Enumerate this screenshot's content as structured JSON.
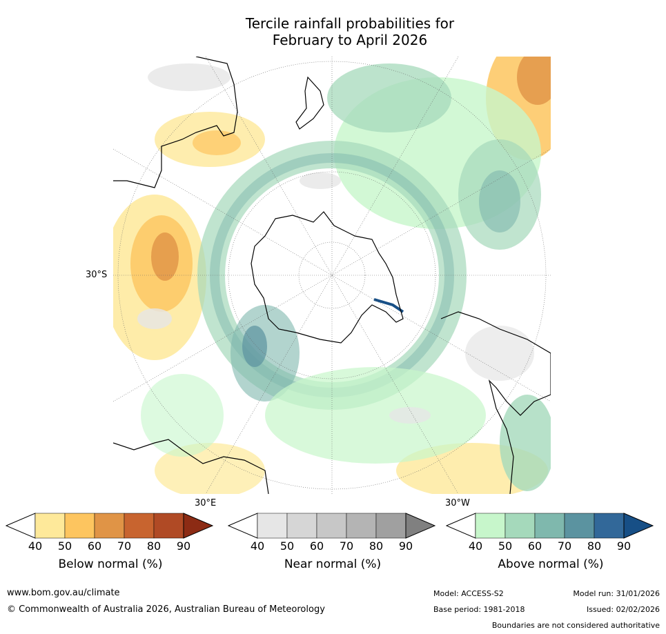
{
  "title_line1": "Tercile rainfall probabilities for",
  "title_line2": "February to April 2026",
  "map": {
    "lat_label": "30°S",
    "lon_label_east": "30°E",
    "lon_label_west": "30°W"
  },
  "colorbars": [
    {
      "label": "Below normal (%)",
      "ticks": [
        "40",
        "50",
        "60",
        "70",
        "80",
        "90"
      ],
      "colors": [
        "#ffffff",
        "#fee99a",
        "#fdc55f",
        "#e09446",
        "#c8642f",
        "#b04a25",
        "#8c2b14"
      ]
    },
    {
      "label": "Near normal (%)",
      "ticks": [
        "40",
        "50",
        "60",
        "70",
        "80",
        "90"
      ],
      "colors": [
        "#ffffff",
        "#e6e6e6",
        "#d6d6d6",
        "#c7c7c7",
        "#b4b4b4",
        "#a0a0a0",
        "#808080"
      ]
    },
    {
      "label": "Above normal (%)",
      "ticks": [
        "40",
        "50",
        "60",
        "70",
        "80",
        "90"
      ],
      "colors": [
        "#ffffff",
        "#c7f6cb",
        "#a5d9bb",
        "#7fb8ad",
        "#5b93a0",
        "#326899",
        "#174f86"
      ]
    }
  ],
  "footer": {
    "url": "www.bom.gov.au/climate",
    "copyright": "© Commonwealth of Australia 2026, Australian Bureau of Meteorology",
    "model": "Model: ACCESS-S2",
    "base_period": "Base period: 1981-2018",
    "model_run": "Model run: 31/01/2026",
    "issued": "Issued: 02/02/2026",
    "disclaimer": "Boundaries are not considered authoritative"
  }
}
